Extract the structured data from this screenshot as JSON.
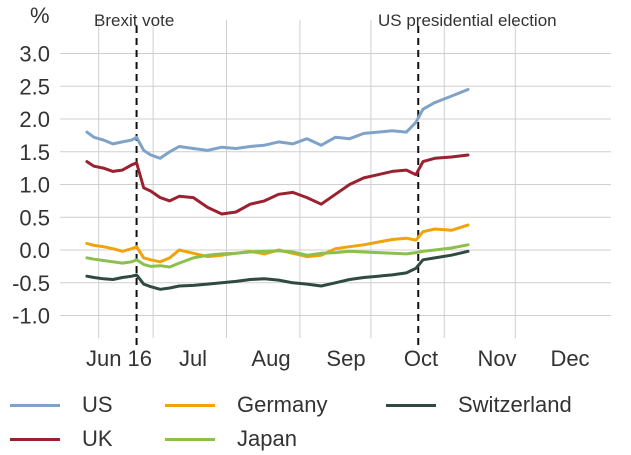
{
  "chart_data": {
    "type": "line",
    "title": "",
    "ylabel": "%",
    "xlabel": "",
    "ylim": [
      -1.25,
      3.25
    ],
    "yticks": [
      3.0,
      2.5,
      2.0,
      1.5,
      1.0,
      0.5,
      0.0,
      -0.5,
      -1.0
    ],
    "ytick_labels": [
      "3.0",
      "2.5",
      "2.0",
      "1.5",
      "1.0",
      "0.5",
      "0.0",
      "-0.5",
      "-1.0"
    ],
    "xlim": [
      0,
      162
    ],
    "xticks": [
      {
        "label": "Jun 16",
        "x": 6
      },
      {
        "label": "Jul",
        "x": 29
      },
      {
        "label": "Aug",
        "x": 60
      },
      {
        "label": "Sep",
        "x": 91
      },
      {
        "label": "Oct",
        "x": 121
      },
      {
        "label": "Nov",
        "x": 152
      },
      {
        "label": "Dec",
        "x": 182
      }
    ],
    "grid": true,
    "legend_position": "bottom",
    "events": [
      {
        "label": "Brexit vote",
        "x": 22
      },
      {
        "label": "US presidential election",
        "x": 141
      }
    ],
    "series": [
      {
        "name": "US",
        "color": "#7fa3c8",
        "x": [
          1,
          4,
          8,
          12,
          16,
          20,
          22,
          25,
          28,
          32,
          36,
          40,
          46,
          52,
          58,
          64,
          70,
          76,
          82,
          88,
          94,
          100,
          106,
          112,
          118,
          124,
          130,
          136,
          140,
          143,
          148,
          155,
          162
        ],
        "values": [
          1.8,
          1.72,
          1.68,
          1.62,
          1.65,
          1.68,
          1.72,
          1.52,
          1.45,
          1.4,
          1.5,
          1.58,
          1.55,
          1.52,
          1.57,
          1.55,
          1.58,
          1.6,
          1.65,
          1.62,
          1.7,
          1.6,
          1.72,
          1.7,
          1.78,
          1.8,
          1.82,
          1.8,
          1.95,
          2.15,
          2.25,
          2.35,
          2.45
        ]
      },
      {
        "name": "UK",
        "color": "#9a2230",
        "x": [
          1,
          4,
          8,
          12,
          16,
          20,
          22,
          25,
          28,
          32,
          36,
          40,
          46,
          52,
          58,
          64,
          70,
          76,
          82,
          88,
          94,
          100,
          106,
          112,
          118,
          124,
          130,
          136,
          140,
          143,
          148,
          155,
          162
        ],
        "values": [
          1.35,
          1.28,
          1.25,
          1.2,
          1.22,
          1.3,
          1.33,
          0.95,
          0.9,
          0.8,
          0.75,
          0.82,
          0.8,
          0.65,
          0.55,
          0.58,
          0.7,
          0.75,
          0.85,
          0.88,
          0.8,
          0.7,
          0.85,
          1.0,
          1.1,
          1.15,
          1.2,
          1.22,
          1.15,
          1.35,
          1.4,
          1.42,
          1.45
        ]
      },
      {
        "name": "Germany",
        "color": "#f0a30a",
        "x": [
          1,
          4,
          8,
          12,
          16,
          20,
          22,
          25,
          28,
          32,
          36,
          40,
          46,
          52,
          58,
          64,
          70,
          76,
          82,
          88,
          94,
          100,
          106,
          112,
          118,
          124,
          130,
          136,
          140,
          143,
          148,
          155,
          162
        ],
        "values": [
          0.1,
          0.07,
          0.05,
          0.02,
          -0.02,
          0.02,
          0.05,
          -0.12,
          -0.15,
          -0.18,
          -0.12,
          0.0,
          -0.05,
          -0.1,
          -0.08,
          -0.05,
          -0.02,
          -0.06,
          0.0,
          -0.05,
          -0.1,
          -0.08,
          0.02,
          0.05,
          0.08,
          0.12,
          0.16,
          0.18,
          0.15,
          0.28,
          0.32,
          0.3,
          0.38
        ]
      },
      {
        "name": "Japan",
        "color": "#8cbf4c",
        "x": [
          1,
          4,
          8,
          12,
          16,
          20,
          22,
          25,
          28,
          32,
          36,
          40,
          46,
          52,
          58,
          64,
          70,
          76,
          82,
          88,
          94,
          100,
          106,
          112,
          118,
          124,
          130,
          136,
          140,
          143,
          148,
          155,
          162
        ],
        "values": [
          -0.12,
          -0.14,
          -0.16,
          -0.18,
          -0.2,
          -0.18,
          -0.15,
          -0.22,
          -0.25,
          -0.24,
          -0.26,
          -0.2,
          -0.12,
          -0.08,
          -0.06,
          -0.05,
          -0.03,
          -0.02,
          -0.01,
          -0.03,
          -0.08,
          -0.05,
          -0.04,
          -0.02,
          -0.03,
          -0.04,
          -0.05,
          -0.06,
          -0.04,
          -0.02,
          0.0,
          0.03,
          0.08
        ]
      },
      {
        "name": "Switzerland",
        "color": "#2f4a3e",
        "x": [
          1,
          4,
          8,
          12,
          16,
          20,
          22,
          25,
          28,
          32,
          36,
          40,
          46,
          52,
          58,
          64,
          70,
          76,
          82,
          88,
          94,
          100,
          106,
          112,
          118,
          124,
          130,
          136,
          140,
          143,
          148,
          155,
          162
        ],
        "values": [
          -0.4,
          -0.42,
          -0.44,
          -0.45,
          -0.42,
          -0.4,
          -0.38,
          -0.52,
          -0.56,
          -0.6,
          -0.58,
          -0.55,
          -0.54,
          -0.52,
          -0.5,
          -0.48,
          -0.45,
          -0.44,
          -0.46,
          -0.5,
          -0.52,
          -0.55,
          -0.5,
          -0.45,
          -0.42,
          -0.4,
          -0.38,
          -0.35,
          -0.28,
          -0.15,
          -0.12,
          -0.08,
          -0.02
        ]
      }
    ]
  }
}
